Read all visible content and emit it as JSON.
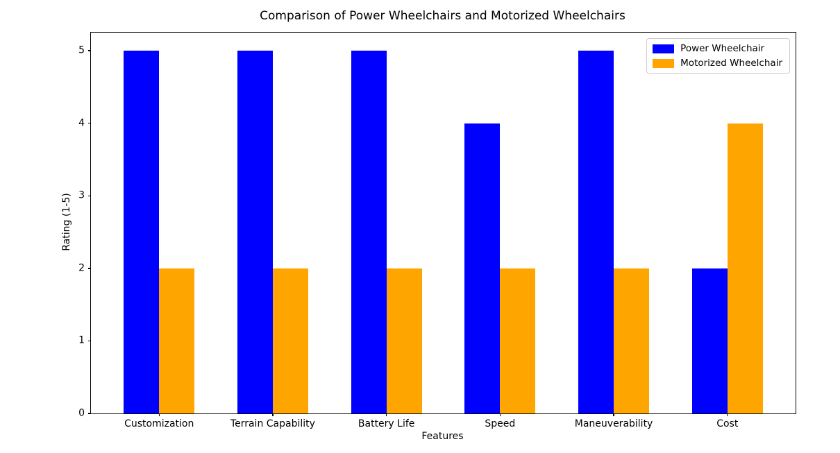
{
  "chart_data": {
    "type": "bar",
    "title": "Comparison of Power Wheelchairs and Motorized Wheelchairs",
    "xlabel": "Features",
    "ylabel": "Rating (1-5)",
    "categories": [
      "Customization",
      "Terrain Capability",
      "Battery Life",
      "Speed",
      "Maneuverability",
      "Cost"
    ],
    "series": [
      {
        "name": "Power Wheelchair",
        "color": "#0000ff",
        "values": [
          5,
          5,
          5,
          4,
          5,
          2
        ]
      },
      {
        "name": "Motorized Wheelchair",
        "color": "#ffa500",
        "values": [
          2,
          2,
          2,
          2,
          2,
          4
        ]
      }
    ],
    "yticks": [
      0,
      1,
      2,
      3,
      4,
      5
    ],
    "ylim": [
      0,
      5.25
    ],
    "grid": false,
    "legend_position": "upper right",
    "background_color": "#ffffff",
    "spine_color": "#000000",
    "text_color": "#000000"
  }
}
